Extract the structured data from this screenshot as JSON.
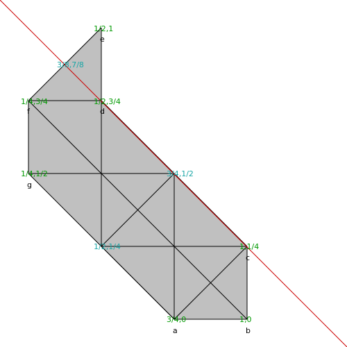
{
  "diagram": {
    "fill_color": "#c0c0c0",
    "edge_color": "#000000",
    "cut_line_color": "#cc0000",
    "coord_color_green": "#009900",
    "coord_color_cyan": "#1aa6a6",
    "vertex_labels": [
      "e",
      "f",
      "d",
      "g",
      "c",
      "a",
      "b"
    ],
    "coordinate_labels": [
      "1/2,1",
      "3/8,7/8",
      "1/4,3/4",
      "1/2,3/4",
      "1/4,1/2",
      "3/4,1/2",
      "1/2,1/4",
      "1,1/4",
      "3/4,0",
      "1,0"
    ]
  }
}
